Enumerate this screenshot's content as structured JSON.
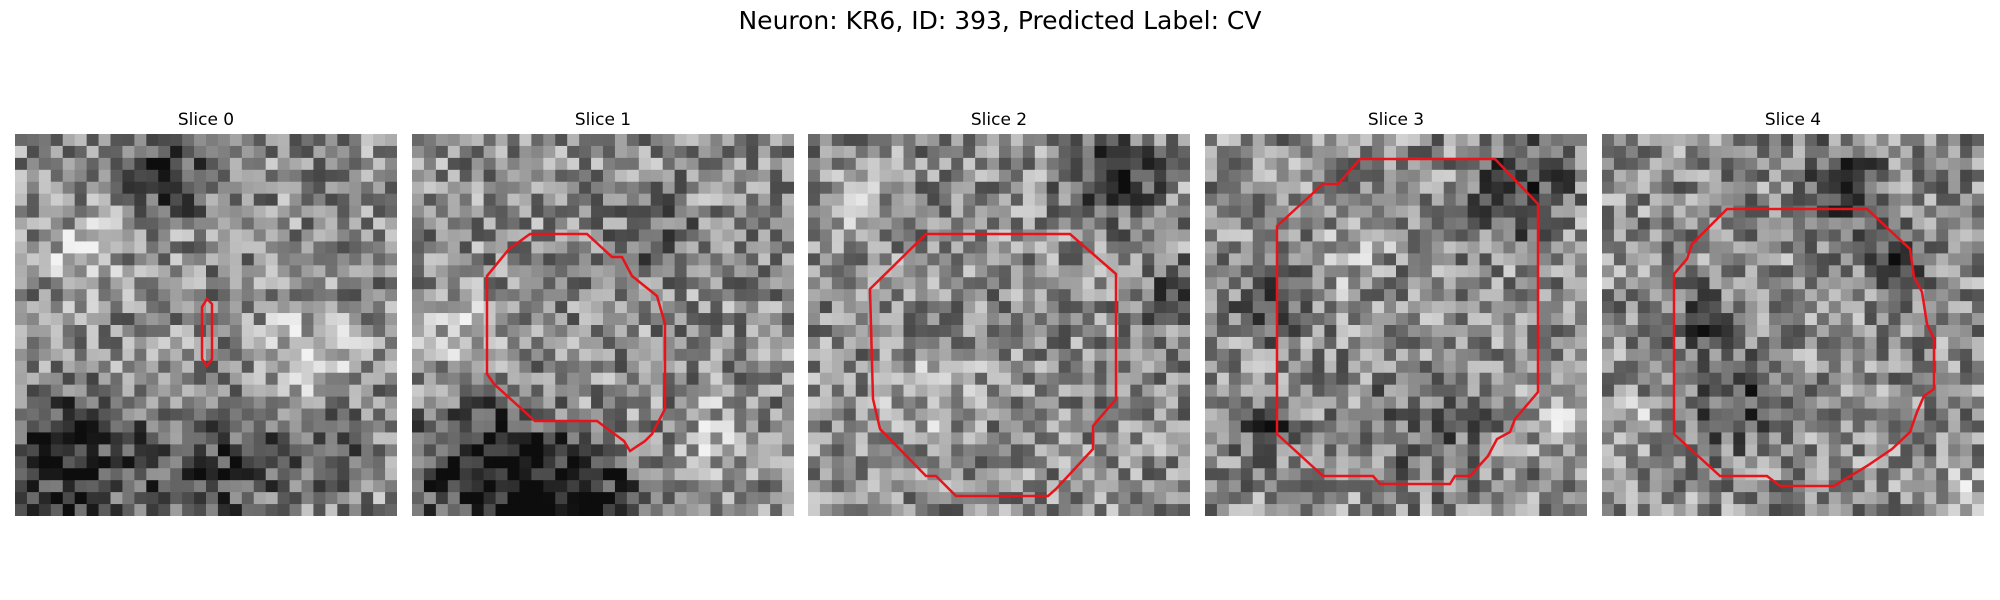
{
  "figure": {
    "suptitle": "Neuron: KR6, ID: 393, Predicted Label: CV"
  },
  "panels": [
    {
      "title": "Slice 0",
      "seed": 11,
      "dark_regions": "top-center and bottom-left",
      "contour_color": "#e8141b"
    },
    {
      "title": "Slice 1",
      "seed": 23,
      "dark_regions": "bottom-left",
      "contour_color": "#e8141b"
    },
    {
      "title": "Slice 2",
      "seed": 37,
      "dark_regions": "top-right",
      "contour_color": "#e8141b"
    },
    {
      "title": "Slice 3",
      "seed": 41,
      "dark_regions": "top-right, left ring",
      "contour_color": "#e8141b"
    },
    {
      "title": "Slice 4",
      "seed": 59,
      "dark_regions": "center-left",
      "contour_color": "#e8141b"
    }
  ],
  "image": {
    "grid_size": 32,
    "colormap": "grayscale"
  }
}
